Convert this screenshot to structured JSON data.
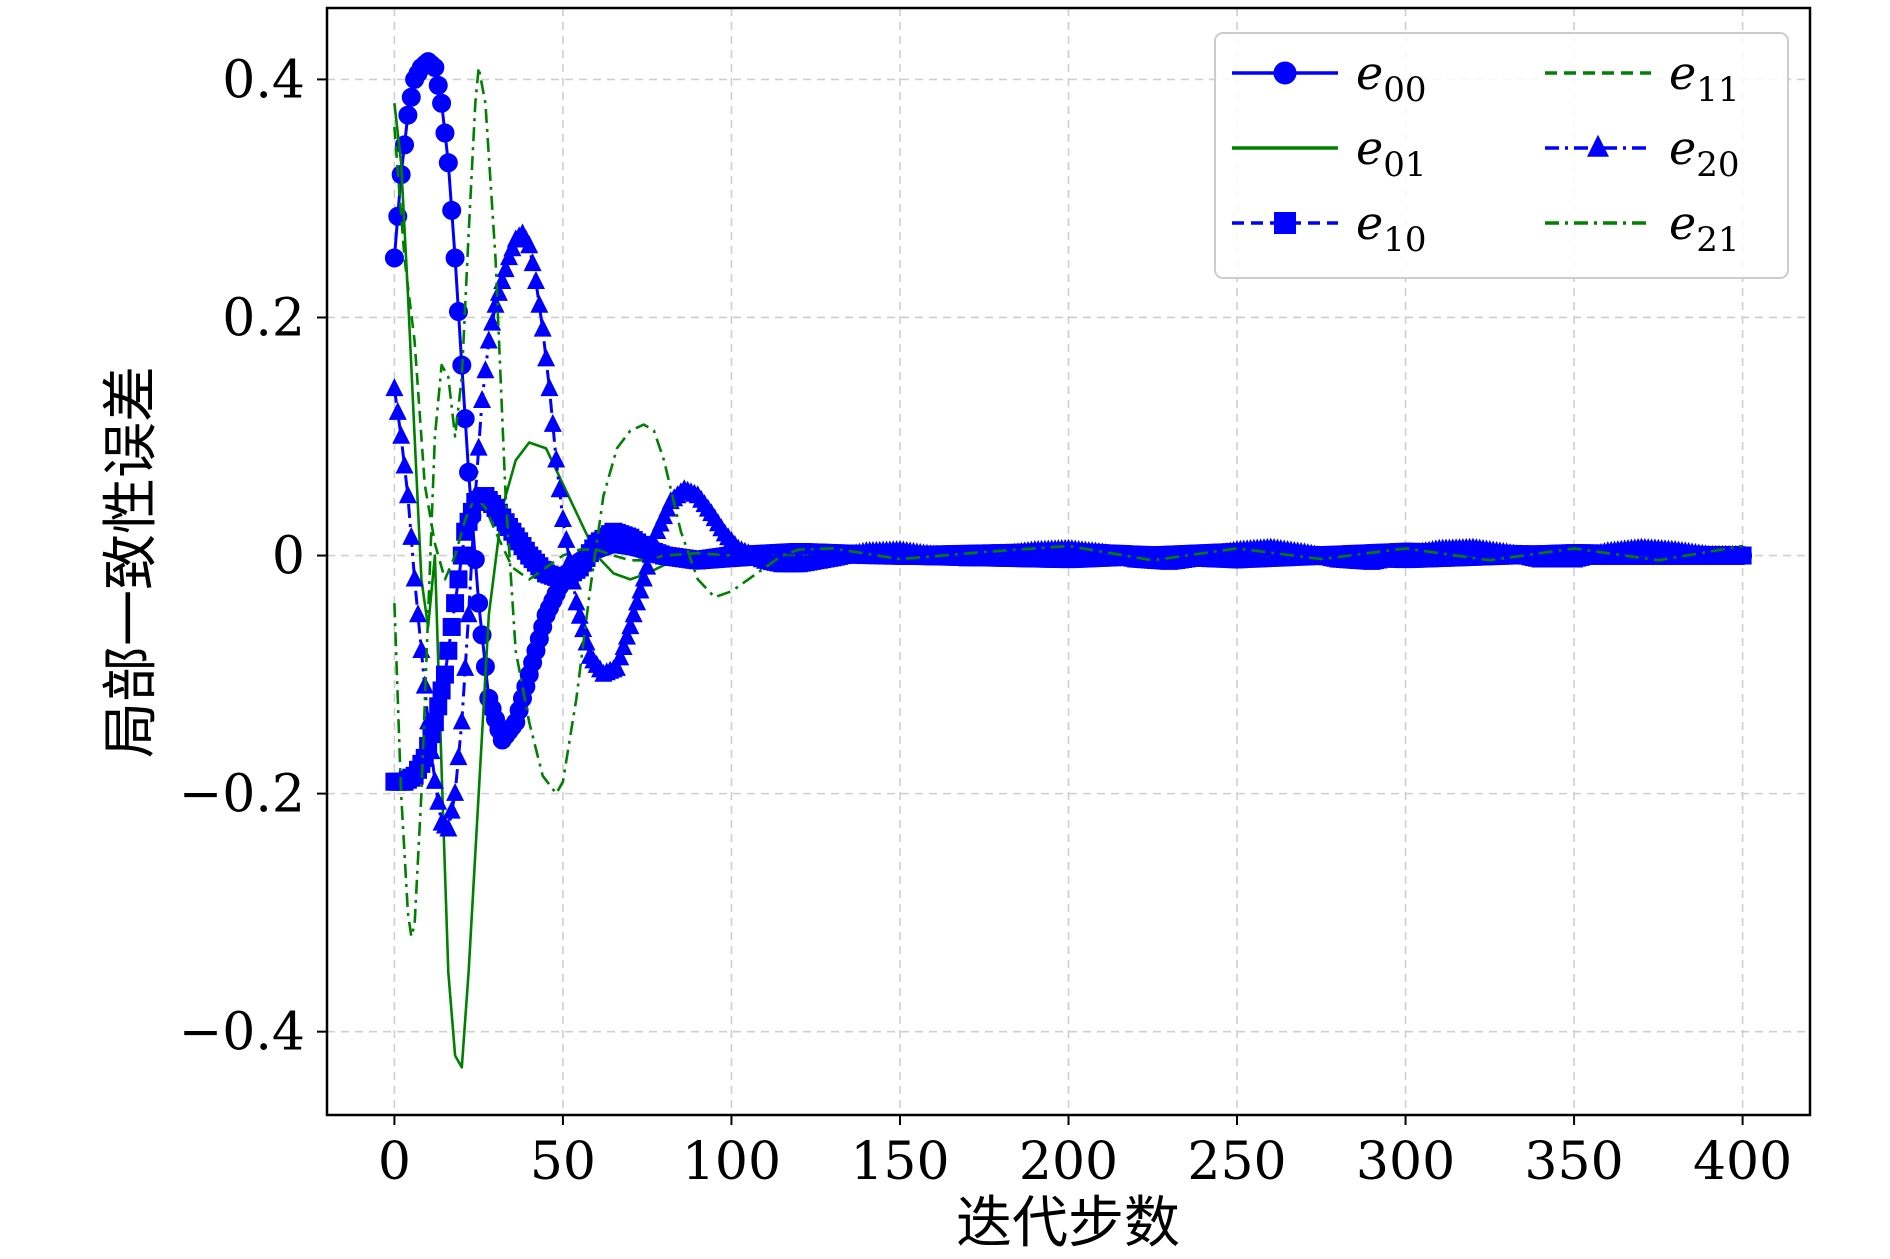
{
  "chart_data": {
    "type": "line",
    "title": "",
    "xlabel": "迭代步数",
    "ylabel": "局部一致性误差",
    "xlim": [
      -20,
      420
    ],
    "ylim": [
      -0.47,
      0.46
    ],
    "xticks": [
      0,
      50,
      100,
      150,
      200,
      250,
      300,
      350,
      400
    ],
    "xtick_labels": [
      "0",
      "50",
      "100",
      "150",
      "200",
      "250",
      "300",
      "350",
      "400"
    ],
    "yticks": [
      -0.4,
      -0.2,
      0,
      0.2,
      0.4
    ],
    "ytick_labels": [
      "−0.4",
      "−0.2",
      "0",
      "0.2",
      "0.4"
    ],
    "grid": true,
    "legend_placement": "top-right",
    "series": [
      {
        "name": "e00",
        "label_base": "e",
        "label_sub": "00",
        "color": "#0000ff",
        "linestyle": "solid",
        "marker": "circle",
        "x": [
          0,
          2,
          4,
          6,
          8,
          10,
          12,
          14,
          16,
          18,
          20,
          22,
          25,
          28,
          32,
          36,
          40,
          45,
          50,
          55,
          60,
          65,
          70,
          75,
          80,
          90,
          100,
          120,
          150,
          200,
          250,
          300,
          350,
          400
        ],
        "y": [
          0.25,
          0.32,
          0.37,
          0.4,
          0.41,
          0.415,
          0.41,
          0.38,
          0.33,
          0.25,
          0.16,
          0.07,
          -0.04,
          -0.12,
          -0.155,
          -0.14,
          -0.1,
          -0.05,
          -0.02,
          -0.005,
          0.005,
          0.01,
          0.008,
          0.004,
          0.0,
          -0.004,
          -0.002,
          0.002,
          0.0,
          0.003,
          -0.003,
          0.003,
          0.0,
          0.0
        ]
      },
      {
        "name": "e01",
        "label_base": "e",
        "label_sub": "01",
        "color": "#008000",
        "linestyle": "solid",
        "marker": "none",
        "x": [
          0,
          2,
          4,
          6,
          8,
          10,
          12,
          14,
          16,
          18,
          20,
          22,
          25,
          28,
          32,
          36,
          40,
          45,
          50,
          55,
          60,
          65,
          70,
          75,
          80,
          90,
          100,
          120,
          150,
          200,
          250,
          300,
          350,
          400
        ],
        "y": [
          0.38,
          0.33,
          0.22,
          0.1,
          -0.02,
          -0.06,
          0.0,
          -0.18,
          -0.35,
          -0.42,
          -0.43,
          -0.35,
          -0.2,
          -0.05,
          0.04,
          0.08,
          0.095,
          0.09,
          0.06,
          0.03,
          0.0,
          -0.015,
          -0.02,
          -0.015,
          -0.008,
          0.0,
          0.004,
          0.0,
          -0.002,
          0.002,
          0.0,
          0.0,
          0.0,
          0.0
        ]
      },
      {
        "name": "e10",
        "label_base": "e",
        "label_sub": "10",
        "color": "#0000ff",
        "linestyle": "dashed",
        "marker": "square",
        "x": [
          0,
          3,
          6,
          9,
          12,
          15,
          18,
          21,
          24,
          27,
          30,
          35,
          40,
          45,
          50,
          55,
          60,
          65,
          70,
          75,
          80,
          90,
          100,
          120,
          150,
          200,
          250,
          300,
          350,
          400
        ],
        "y": [
          -0.19,
          -0.19,
          -0.185,
          -0.17,
          -0.14,
          -0.1,
          -0.04,
          0.02,
          0.045,
          0.05,
          0.04,
          0.02,
          0.0,
          -0.015,
          -0.02,
          -0.01,
          0.01,
          0.02,
          0.015,
          0.005,
          0.0,
          -0.004,
          0.0,
          0.003,
          0.0,
          -0.003,
          0.003,
          -0.003,
          0.002,
          0.0
        ]
      },
      {
        "name": "e11",
        "label_base": "e",
        "label_sub": "11",
        "color": "#008000",
        "linestyle": "dashed",
        "marker": "none",
        "x": [
          0,
          3,
          6,
          9,
          12,
          15,
          18,
          21,
          24,
          27,
          30,
          35,
          40,
          45,
          50,
          55,
          60,
          65,
          70,
          75,
          80,
          90,
          100,
          120,
          150,
          200,
          250,
          300,
          350,
          400
        ],
        "y": [
          0.36,
          0.25,
          0.18,
          0.06,
          0.01,
          -0.02,
          0.0,
          0.03,
          0.05,
          0.04,
          0.02,
          -0.01,
          -0.02,
          -0.01,
          0.0,
          0.005,
          0.005,
          0.0,
          -0.004,
          -0.004,
          0.0,
          0.002,
          0.0,
          0.0,
          0.0,
          0.0,
          0.0,
          0.0,
          0.0,
          0.0
        ]
      },
      {
        "name": "e20",
        "label_base": "e",
        "label_sub": "20",
        "color": "#0000ff",
        "linestyle": "dashdot",
        "marker": "triangle",
        "x": [
          0,
          2,
          4,
          6,
          8,
          10,
          12,
          14,
          16,
          18,
          20,
          22,
          24,
          26,
          28,
          30,
          32,
          34,
          36,
          38,
          40,
          42,
          44,
          46,
          48,
          50,
          54,
          58,
          62,
          66,
          70,
          74,
          78,
          82,
          86,
          90,
          94,
          98,
          102,
          106,
          110,
          115,
          120,
          130,
          140,
          150,
          160,
          170,
          180,
          190,
          200,
          210,
          220,
          230,
          240,
          250,
          260,
          270,
          280,
          290,
          300,
          310,
          320,
          330,
          340,
          350,
          360,
          370,
          380,
          390,
          400
        ],
        "y": [
          0.14,
          0.1,
          0.05,
          -0.02,
          -0.08,
          -0.14,
          -0.19,
          -0.225,
          -0.23,
          -0.2,
          -0.14,
          -0.05,
          0.05,
          0.13,
          0.18,
          0.21,
          0.23,
          0.25,
          0.265,
          0.27,
          0.26,
          0.23,
          0.19,
          0.14,
          0.08,
          0.03,
          -0.04,
          -0.085,
          -0.1,
          -0.095,
          -0.06,
          -0.02,
          0.02,
          0.045,
          0.055,
          0.05,
          0.035,
          0.018,
          0.005,
          0.0,
          -0.005,
          -0.008,
          -0.008,
          -0.003,
          0.003,
          0.004,
          0.0,
          -0.003,
          0.0,
          0.004,
          0.005,
          0.002,
          -0.004,
          -0.006,
          -0.002,
          0.004,
          0.006,
          0.002,
          -0.004,
          -0.006,
          0.0,
          0.005,
          0.006,
          0.002,
          -0.004,
          -0.004,
          0.003,
          0.006,
          0.004,
          0.0,
          0.0
        ]
      },
      {
        "name": "e21",
        "label_base": "e",
        "label_sub": "21",
        "color": "#008000",
        "linestyle": "dashdot",
        "marker": "none",
        "x": [
          0,
          2,
          4,
          5,
          6,
          8,
          10,
          12,
          14,
          16,
          18,
          20,
          22,
          24,
          25,
          27,
          30,
          33,
          36,
          40,
          44,
          48,
          50,
          54,
          58,
          62,
          66,
          70,
          74,
          77,
          80,
          85,
          90,
          95,
          100,
          105,
          110,
          115,
          120,
          130,
          150,
          175,
          200,
          225,
          250,
          275,
          300,
          325,
          350,
          375,
          400
        ],
        "y": [
          -0.04,
          -0.2,
          -0.3,
          -0.32,
          -0.31,
          -0.2,
          -0.05,
          0.1,
          0.16,
          0.15,
          0.1,
          0.15,
          0.27,
          0.38,
          0.41,
          0.38,
          0.25,
          0.05,
          -0.08,
          -0.14,
          -0.185,
          -0.2,
          -0.19,
          -0.12,
          -0.03,
          0.05,
          0.09,
          0.105,
          0.11,
          0.105,
          0.08,
          0.02,
          -0.02,
          -0.035,
          -0.03,
          -0.02,
          -0.01,
          0.0,
          0.005,
          0.006,
          -0.003,
          0.003,
          0.008,
          -0.004,
          0.006,
          -0.003,
          0.006,
          -0.004,
          0.006,
          -0.004,
          0.008
        ]
      }
    ]
  }
}
